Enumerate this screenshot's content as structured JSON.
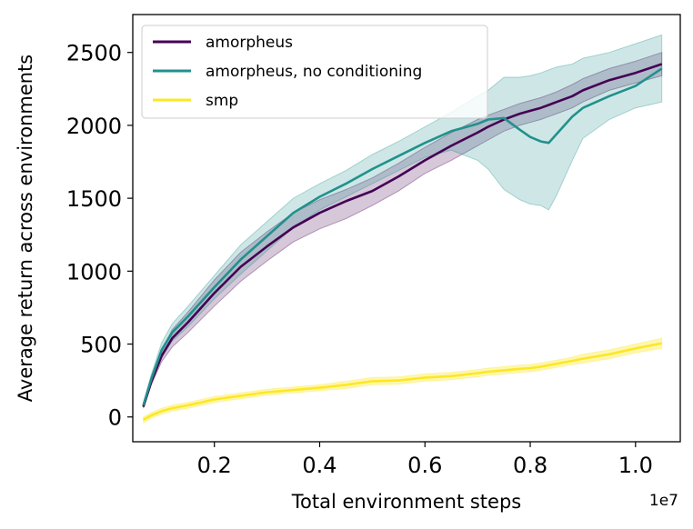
{
  "chart_data": {
    "type": "line",
    "title": "",
    "xlabel": "Total environment steps",
    "ylabel": "Average return across environments",
    "x_offset_label": "1e7",
    "xlim": [
      0.045,
      1.085
    ],
    "ylim": [
      -170,
      2760
    ],
    "xticks": [
      0.2,
      0.4,
      0.6,
      0.8,
      1.0
    ],
    "xtick_labels": [
      "0.2",
      "0.4",
      "0.6",
      "0.8",
      "1.0"
    ],
    "yticks": [
      0,
      500,
      1000,
      1500,
      2000,
      2500
    ],
    "ytick_labels": [
      "0",
      "500",
      "1000",
      "1500",
      "2000",
      "2500"
    ],
    "grid": false,
    "legend_position": "top-left",
    "x": [
      0.065,
      0.08,
      0.1,
      0.12,
      0.15,
      0.2,
      0.25,
      0.3,
      0.35,
      0.4,
      0.45,
      0.5,
      0.55,
      0.6,
      0.65,
      0.7,
      0.72,
      0.75,
      0.78,
      0.8,
      0.82,
      0.835,
      0.85,
      0.88,
      0.9,
      0.95,
      1.0,
      1.05
    ],
    "series": [
      {
        "name": "amorpheus",
        "color": "#440154",
        "values": [
          70,
          240,
          420,
          540,
          650,
          850,
          1030,
          1170,
          1300,
          1400,
          1480,
          1550,
          1650,
          1760,
          1860,
          1950,
          1990,
          2040,
          2080,
          2100,
          2120,
          2140,
          2160,
          2200,
          2240,
          2310,
          2360,
          2420
        ],
        "lower": [
          60,
          220,
          380,
          480,
          580,
          760,
          930,
          1070,
          1200,
          1290,
          1360,
          1450,
          1550,
          1670,
          1760,
          1860,
          1900,
          1960,
          2000,
          2020,
          2040,
          2060,
          2080,
          2120,
          2160,
          2240,
          2290,
          2340
        ],
        "upper": [
          80,
          260,
          460,
          600,
          720,
          940,
          1130,
          1270,
          1400,
          1490,
          1560,
          1640,
          1740,
          1850,
          1950,
          2040,
          2070,
          2110,
          2150,
          2170,
          2190,
          2210,
          2230,
          2280,
          2320,
          2390,
          2440,
          2500
        ]
      },
      {
        "name": "amorpheus, no conditioning",
        "color": "#21918c",
        "values": [
          80,
          260,
          460,
          580,
          690,
          890,
          1080,
          1240,
          1400,
          1510,
          1600,
          1700,
          1790,
          1880,
          1960,
          2010,
          2040,
          2050,
          1970,
          1920,
          1890,
          1880,
          1940,
          2060,
          2120,
          2200,
          2270,
          2390
        ],
        "lower": [
          70,
          230,
          410,
          520,
          620,
          810,
          980,
          1140,
          1300,
          1420,
          1510,
          1600,
          1690,
          1780,
          1830,
          1760,
          1700,
          1560,
          1490,
          1460,
          1450,
          1420,
          1520,
          1760,
          1910,
          2040,
          2120,
          2160
        ],
        "upper": [
          90,
          290,
          510,
          640,
          760,
          970,
          1180,
          1340,
          1500,
          1600,
          1690,
          1800,
          1890,
          1990,
          2090,
          2200,
          2240,
          2330,
          2330,
          2340,
          2360,
          2380,
          2400,
          2420,
          2460,
          2500,
          2560,
          2620
        ]
      },
      {
        "name": "smp",
        "color": "#fde725",
        "values": [
          -20,
          10,
          40,
          60,
          80,
          120,
          145,
          170,
          185,
          200,
          220,
          245,
          250,
          270,
          280,
          300,
          310,
          320,
          330,
          335,
          345,
          355,
          365,
          385,
          400,
          430,
          470,
          505
        ],
        "lower": [
          -40,
          -10,
          20,
          40,
          60,
          100,
          125,
          150,
          165,
          180,
          195,
          220,
          225,
          245,
          255,
          275,
          285,
          295,
          305,
          310,
          320,
          330,
          340,
          360,
          370,
          400,
          440,
          470
        ],
        "upper": [
          0,
          30,
          60,
          80,
          100,
          140,
          165,
          190,
          205,
          220,
          245,
          270,
          275,
          295,
          305,
          325,
          335,
          345,
          355,
          360,
          370,
          380,
          390,
          410,
          430,
          460,
          500,
          540
        ]
      }
    ]
  }
}
